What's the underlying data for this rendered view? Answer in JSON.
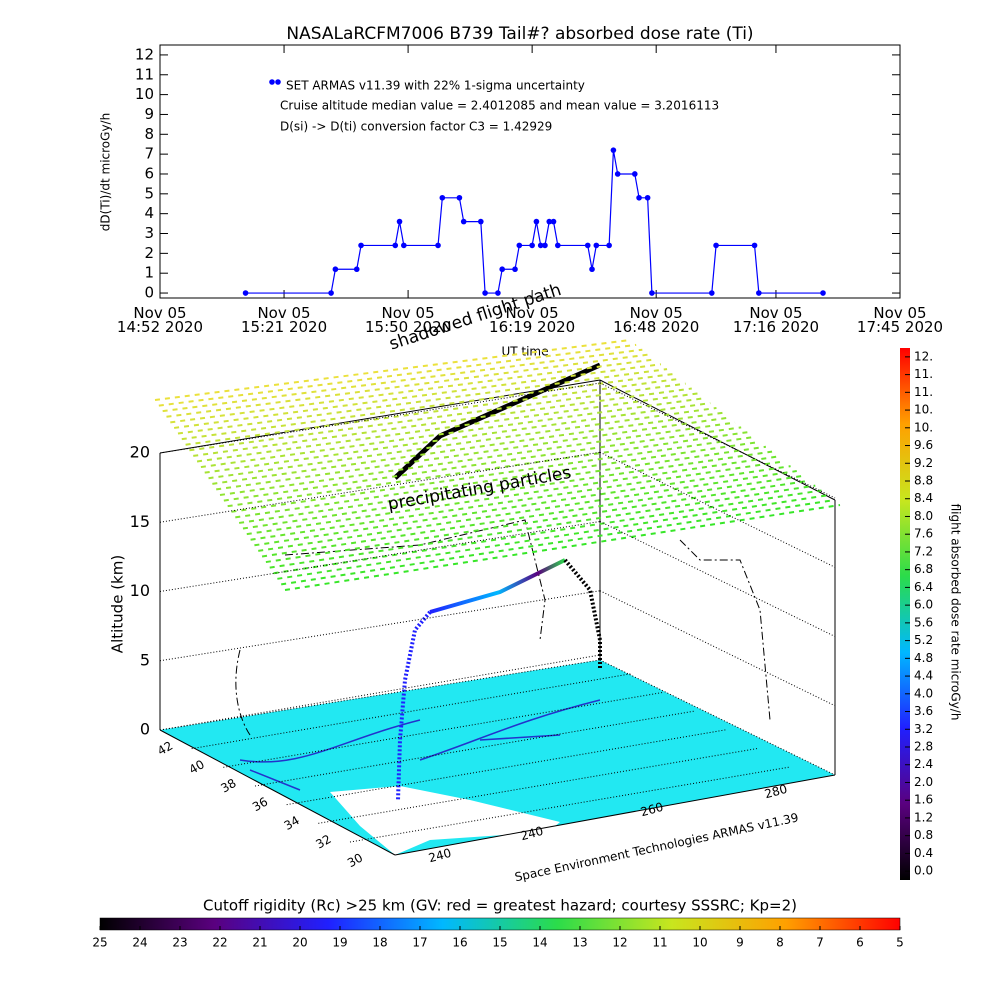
{
  "chart_data": [
    {
      "type": "line",
      "title": "NASALaRCFM7006  B739 Tail#? absorbed dose rate (Ti)",
      "x_label": "UT time",
      "y_label": "dD(Ti)/dt microGy/h",
      "annotations": [
        "Cruise altitude median value = 2.4012085 and mean value = 3.2016113",
        "D(si) -> D(ti) conversion factor C3 = 1.42929"
      ],
      "x": [
        "2020-11-05 15:12",
        "2020-11-05 15:32",
        "2020-11-05 15:33",
        "2020-11-05 15:38",
        "2020-11-05 15:39",
        "2020-11-05 15:47",
        "2020-11-05 15:48",
        "2020-11-05 15:49",
        "2020-11-05 15:57",
        "2020-11-05 15:58",
        "2020-11-05 16:02",
        "2020-11-05 16:03",
        "2020-11-05 16:07",
        "2020-11-05 16:08",
        "2020-11-05 16:11",
        "2020-11-05 16:12",
        "2020-11-05 16:15",
        "2020-11-05 16:16",
        "2020-11-05 16:19",
        "2020-11-05 16:20",
        "2020-11-05 16:21",
        "2020-11-05 16:22",
        "2020-11-05 16:23",
        "2020-11-05 16:24",
        "2020-11-05 16:25",
        "2020-11-05 16:32",
        "2020-11-05 16:33",
        "2020-11-05 16:34",
        "2020-11-05 16:37",
        "2020-11-05 16:38",
        "2020-11-05 16:39",
        "2020-11-05 16:43",
        "2020-11-05 16:44",
        "2020-11-05 16:46",
        "2020-11-05 16:47",
        "2020-11-05 17:01",
        "2020-11-05 17:02",
        "2020-11-05 17:11",
        "2020-11-05 17:12",
        "2020-11-05 17:27"
      ],
      "series": [
        {
          "name": "SET ARMAS v11.39 with 22% 1-sigma uncertainty",
          "color": "#0000ff",
          "values": [
            0,
            0,
            1.2,
            1.2,
            2.4,
            2.4,
            3.6,
            2.4,
            2.4,
            4.8,
            4.8,
            3.6,
            3.6,
            0,
            0,
            1.2,
            1.2,
            2.4,
            2.4,
            3.6,
            2.4,
            2.4,
            3.6,
            3.6,
            2.4,
            2.4,
            1.2,
            2.4,
            2.4,
            7.2,
            6,
            6,
            4.8,
            4.8,
            0,
            0,
            2.4,
            2.4,
            0,
            0
          ]
        }
      ],
      "xlim": [
        "2020-11-05 14:52",
        "2020-11-05 17:45"
      ],
      "xticks": [
        {
          "value": "2020-11-05 14:52",
          "label": "Nov 05\n14:52 2020"
        },
        {
          "value": "2020-11-05 15:21",
          "label": "Nov 05\n15:21 2020"
        },
        {
          "value": "2020-11-05 15:50",
          "label": "Nov 05\n15:50 2020"
        },
        {
          "value": "2020-11-05 16:19",
          "label": "Nov 05\n16:19 2020"
        },
        {
          "value": "2020-11-05 16:48",
          "label": "Nov 05\n16:48 2020"
        },
        {
          "value": "2020-11-05 17:16",
          "label": "Nov 05\n17:16 2020"
        },
        {
          "value": "2020-11-05 17:45",
          "label": "Nov 05\n17:45 2020"
        }
      ],
      "ylim": [
        -0.25,
        12.5
      ],
      "yticks": [
        0,
        1,
        2,
        3,
        4,
        5,
        6,
        7,
        8,
        9,
        10,
        11,
        12
      ]
    },
    {
      "type": "surface3d",
      "z_label": "Altitude (km)",
      "zlim": [
        0,
        20
      ],
      "zticks": [
        0,
        5,
        10,
        15,
        20
      ],
      "lat_lim": [
        42,
        30
      ],
      "lat_ticks": [
        42,
        40,
        38,
        36,
        34,
        32,
        30
      ],
      "lon_tick_labels": [
        "240",
        "240",
        "260",
        "280"
      ],
      "annotations": [
        "precipitating particles",
        "shadowed flight path",
        "Space Environment Technologies ARMAS v11.39"
      ]
    },
    {
      "type": "colorbar",
      "orientation": "vertical",
      "label": "flight absorbed dose rate microGy/h",
      "colors": [
        "#000000",
        "#5a007f",
        "#2020ff",
        "#00b8ff",
        "#2bdc4a",
        "#c8e61e",
        "#ffa000",
        "#ff0000"
      ],
      "clim": [
        -0.2,
        11.8
      ],
      "ticks": [
        {
          "value": 0,
          "label": "0.0"
        },
        0.4,
        0.8,
        1.2,
        1.6,
        {
          "value": 2,
          "label": "2.0"
        },
        2.4,
        2.8,
        3.2,
        3.6,
        {
          "value": 4,
          "label": "4.0"
        },
        4.4,
        4.8,
        5.2,
        5.6,
        {
          "value": 6,
          "label": "6.0"
        },
        6.4,
        6.8,
        7.2,
        7.6,
        {
          "value": 8,
          "label": "8.0"
        },
        8.4,
        8.8,
        9.2,
        9.6,
        {
          "value": 10,
          "label": "10."
        },
        {
          "value": 10.4,
          "label": "10."
        },
        {
          "value": 10.8,
          "label": "11."
        },
        {
          "value": 11.2,
          "label": "11."
        },
        {
          "value": 11.6,
          "label": "12."
        }
      ]
    },
    {
      "type": "colorbar",
      "orientation": "horizontal",
      "label": "Cutoff rigidity (Rc) >25 km (GV: red = greatest hazard; courtesy SSSRC; Kp=2)",
      "colors": [
        "#000000",
        "#5a007f",
        "#2020ff",
        "#00b8ff",
        "#2bdc4a",
        "#c8e61e",
        "#ffa000",
        "#ff0000"
      ],
      "clim": [
        25,
        5
      ],
      "ticks": [
        25,
        24,
        23,
        22,
        21,
        20,
        19,
        18,
        17,
        16,
        15,
        14,
        13,
        12,
        11,
        10,
        9,
        8,
        7,
        6,
        5
      ]
    }
  ]
}
